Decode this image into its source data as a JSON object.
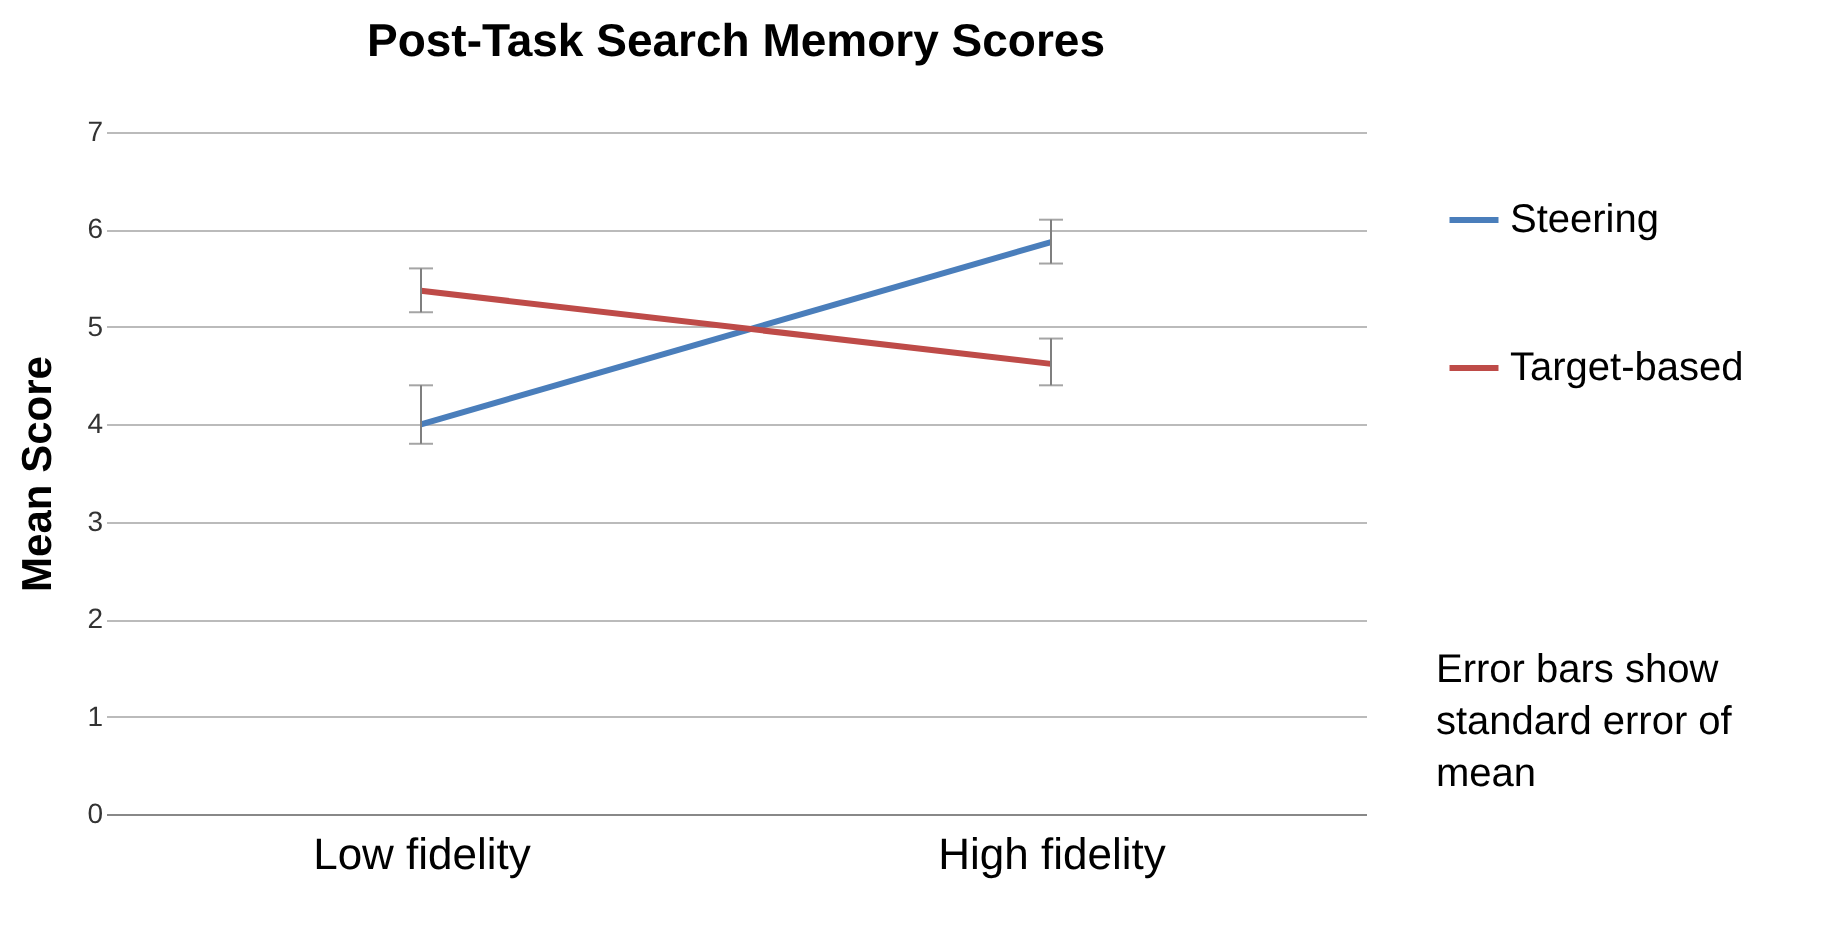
{
  "chart_data": {
    "type": "line",
    "title": "Post-Task Search Memory Scores",
    "ylabel": "Mean Score",
    "categories": [
      "Low fidelity",
      "High fidelity"
    ],
    "series": [
      {
        "name": "Steering",
        "color": "#4a7ebb",
        "values": [
          4.0,
          5.87
        ],
        "errors": [
          [
            3.8,
            4.4
          ],
          [
            5.65,
            6.1
          ]
        ]
      },
      {
        "name": "Target-based",
        "color": "#be4b48",
        "values": [
          5.37,
          4.62
        ],
        "errors": [
          [
            5.15,
            5.6
          ],
          [
            4.4,
            4.88
          ]
        ]
      }
    ],
    "ylim": [
      0,
      7
    ],
    "yticks": [
      0,
      1,
      2,
      3,
      4,
      5,
      6,
      7
    ],
    "grid": "y",
    "legend": "right",
    "marker": "none",
    "line_style": "solid",
    "annotations": [
      "Error bars show standard error of mean"
    ]
  }
}
